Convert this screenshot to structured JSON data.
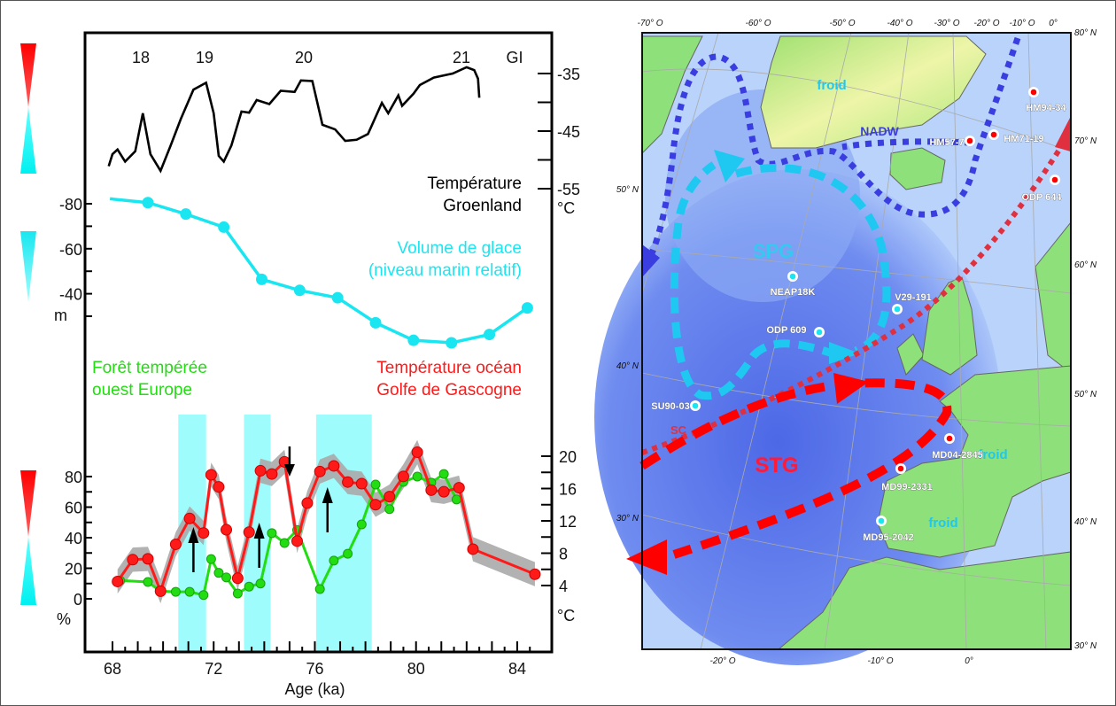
{
  "chart_data": {
    "type": "line",
    "xlabel": "Age (ka)",
    "xlim": [
      67.5,
      85
    ],
    "x_ticks": [
      "68",
      "72",
      "76",
      "80",
      "84"
    ],
    "interstadial_labels": [
      "18",
      "19",
      "20",
      "21",
      "GI"
    ],
    "shaded_intervals_ka": [
      [
        70.6,
        71.7
      ],
      [
        73.2,
        74.25
      ],
      [
        76.05,
        78.25
      ]
    ],
    "arrows": [
      {
        "ka": 71.2,
        "direction": "up"
      },
      {
        "ka": 73.8,
        "direction": "up"
      },
      {
        "ka": 75.0,
        "direction": "down"
      },
      {
        "ka": 76.5,
        "direction": "up"
      }
    ],
    "series": [
      {
        "name": "Température Groenland",
        "label_lines": [
          "Température",
          "Groenland"
        ],
        "color": "#000000",
        "unit": "°C",
        "axis_ticks": [
          "-35",
          "-45",
          "-55"
        ],
        "ylim": [
          -57,
          -33
        ],
        "x": [
          67.85,
          68.0,
          68.2,
          68.5,
          68.9,
          69.2,
          69.5,
          69.9,
          70.3,
          70.7,
          71.2,
          71.7,
          72.0,
          72.2,
          72.4,
          72.7,
          73.1,
          73.4,
          73.7,
          74.2,
          74.65,
          75.2,
          75.45,
          75.9,
          76.3,
          76.8,
          77.2,
          77.65,
          78.1,
          78.65,
          78.9,
          79.3,
          79.45,
          79.9,
          80.15,
          80.7,
          81.45,
          82.0,
          82.3,
          82.45,
          82.5
        ],
        "y": [
          -51.1,
          -49,
          -48.2,
          -50.3,
          -48.5,
          -41.9,
          -49,
          -51.9,
          -47.5,
          -42.9,
          -37.8,
          -36.6,
          -41.9,
          -49.3,
          -50.3,
          -47.5,
          -41.6,
          -41.8,
          -39.6,
          -40.3,
          -38.0,
          -38.2,
          -36.2,
          -36.3,
          -43.9,
          -44.7,
          -46.7,
          -46.5,
          -45.5,
          -40.1,
          -41.9,
          -38.8,
          -40.6,
          -38.5,
          -37.0,
          -35.7,
          -35.0,
          -33.9,
          -34.4,
          -35.9,
          -39.2
        ]
      },
      {
        "name": "Volume de glace (niveau marin relatif)",
        "label_lines": [
          "Volume de glace",
          "(niveau marin relatif)"
        ],
        "color": "#19e6f0",
        "unit": "m",
        "axis_ticks": [
          "-80",
          "-60",
          "-40"
        ],
        "line_start": {
          "x": 67.9,
          "y": -82.2
        },
        "x": [
          69.4,
          70.9,
          72.4,
          73.9,
          75.4,
          76.9,
          78.4,
          79.9,
          81.4,
          82.9,
          84.4
        ],
        "y": [
          -80.5,
          -75.4,
          -69.6,
          -46.4,
          -41.5,
          -38.2,
          -27.1,
          -19.3,
          -18.2,
          -21.9,
          -33.7
        ]
      },
      {
        "name": "Forêt tempérée ouest Europe",
        "label_lines": [
          "Forêt tempérée",
          "ouest Europe"
        ],
        "color": "#22dd11",
        "unit": "%",
        "axis_ticks": [
          "0",
          "20",
          "40",
          "60",
          "80"
        ],
        "ylim": [
          0,
          100
        ],
        "x": [
          68.3,
          69.4,
          69.9,
          70.5,
          71.05,
          71.6,
          71.9,
          72.2,
          72.5,
          72.95,
          73.4,
          73.85,
          74.3,
          74.8,
          75.3,
          76.2,
          76.75,
          77.3,
          77.85,
          78.4,
          78.95,
          79.5,
          80.05,
          80.6,
          81.1,
          81.6
        ],
        "y": [
          12,
          11,
          5,
          4.6,
          4.6,
          2.5,
          26,
          17,
          14,
          3.5,
          8,
          10,
          43,
          36.5,
          45,
          6.4,
          25,
          29.5,
          48.7,
          74.8,
          58.7,
          76.5,
          80,
          76,
          81.7,
          65
        ]
      },
      {
        "name": "Température océan Golfe de Gascogne",
        "label_lines": [
          "Température océan",
          "Golfe de Gascogne"
        ],
        "color": "#ff1a1a",
        "unit": "°C",
        "axis_ticks": [
          "4",
          "8",
          "12",
          "16",
          "20"
        ],
        "uncertainty_band_color": "#aaaaaa",
        "uncertainty_halfwidth": 1.5,
        "x": [
          68.2,
          68.8,
          69.4,
          69.9,
          70.5,
          71.05,
          71.6,
          71.9,
          72.2,
          72.5,
          72.95,
          73.4,
          73.85,
          74.3,
          74.8,
          75.3,
          75.7,
          76.2,
          76.75,
          77.3,
          77.85,
          78.4,
          78.95,
          79.5,
          80.05,
          80.6,
          81.1,
          81.7,
          82.25,
          84.7
        ],
        "y": [
          4.5,
          7.2,
          7.3,
          3.3,
          9.1,
          12.3,
          10.5,
          17.7,
          16.2,
          10.9,
          4.9,
          10.6,
          18.2,
          17.8,
          19.3,
          9.5,
          14.2,
          18.1,
          18.8,
          16.8,
          16.6,
          14.0,
          15.0,
          17.5,
          20.5,
          15.8,
          15.6,
          16.1,
          8.5,
          5.4
        ]
      }
    ],
    "colors": {
      "warm": "#ff0000",
      "cold": "#19e6f0"
    }
  },
  "map": {
    "lon_top": [
      "-70° O",
      "-60° O",
      "-50° O",
      "-40° O",
      "-30° O",
      "-20° O",
      "-10° O",
      "0°"
    ],
    "lon_bottom": [
      "-20° O",
      "-10° O",
      "0°"
    ],
    "lat_left": [
      "50° N",
      "40° N",
      "30° N"
    ],
    "lat_right": [
      "80° N",
      "70° N",
      "60° N",
      "50° N",
      "40° N",
      "30° N"
    ],
    "labels": {
      "froid": "froid",
      "nadw": "NADW",
      "spg": "SPG",
      "stg": "STG",
      "sc": "SC"
    },
    "stations": [
      {
        "name": "HM94-34",
        "type": "warm"
      },
      {
        "name": "HM57-7",
        "type": "warm"
      },
      {
        "name": "HM71-19",
        "type": "warm"
      },
      {
        "name": "ODP 644",
        "type": "warm"
      },
      {
        "name": "NEAP18K",
        "type": "cold"
      },
      {
        "name": "V29-191",
        "type": "cold"
      },
      {
        "name": "ODP 609",
        "type": "cold"
      },
      {
        "name": "SU90-03",
        "type": "cold"
      },
      {
        "name": "MD04-2845",
        "type": "warm"
      },
      {
        "name": "MD99-2331",
        "type": "warm"
      },
      {
        "name": "MD95-2042",
        "type": "cold"
      }
    ],
    "colors": {
      "nadw": "#3a3ee0",
      "spg": "#1ec8f0",
      "stg": "#ff0000",
      "sc": "#e0303f",
      "land": "#8ee07a",
      "ocean": "#b9d3fb"
    }
  }
}
